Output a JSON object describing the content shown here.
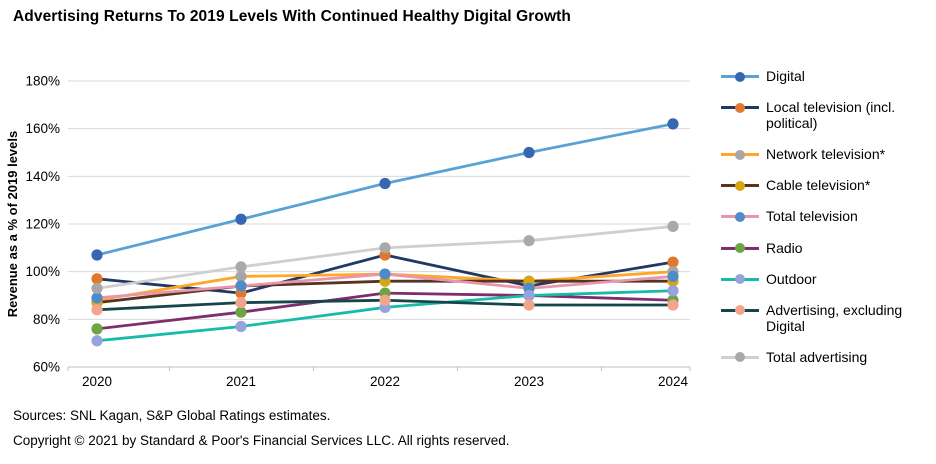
{
  "title": "Advertising Returns To 2019 Levels With Continued Healthy Digital Growth",
  "chart_data": {
    "type": "line",
    "x": [
      "2020",
      "2021",
      "2022",
      "2023",
      "2024"
    ],
    "xlabel": "",
    "ylabel": "Revenue as a % of 2019 levels",
    "ylim": [
      60,
      180
    ],
    "ytick_step": 20,
    "ytick_labels": [
      "60%",
      "80%",
      "100%",
      "120%",
      "140%",
      "160%",
      "180%"
    ],
    "grid": true,
    "legend_position": "right",
    "grid_color": "#d9d9d9",
    "axis_color": "#bfbfbf",
    "series": [
      {
        "name": "Digital",
        "values": [
          107,
          122,
          137,
          150,
          162
        ],
        "line_color": "#59a2d8",
        "marker_color": "#3767b1"
      },
      {
        "name": "Local television (incl. political)",
        "values": [
          97,
          91,
          107,
          94,
          104
        ],
        "line_color": "#1f3864",
        "marker_color": "#e0782f"
      },
      {
        "name": "Network television*",
        "values": [
          88,
          98,
          99,
          96,
          100
        ],
        "line_color": "#ffa726",
        "marker_color": "#a6a6a6"
      },
      {
        "name": "Cable television*",
        "values": [
          87,
          94,
          96,
          96,
          96
        ],
        "line_color": "#573320",
        "marker_color": "#d9a613"
      },
      {
        "name": "Total television",
        "values": [
          89,
          94,
          99,
          93,
          98
        ],
        "line_color": "#e896ae",
        "marker_color": "#4e8bc9"
      },
      {
        "name": "Radio",
        "values": [
          76,
          83,
          91,
          90,
          88
        ],
        "line_color": "#7e2d6f",
        "marker_color": "#6ca644"
      },
      {
        "name": "Outdoor",
        "values": [
          71,
          77,
          85,
          90,
          92
        ],
        "line_color": "#17bba9",
        "marker_color": "#97a4db"
      },
      {
        "name": "Advertising, excluding Digital",
        "values": [
          84,
          87,
          88,
          86,
          86
        ],
        "line_color": "#16454c",
        "marker_color": "#f2a58c"
      },
      {
        "name": "Total advertising",
        "values": [
          93,
          102,
          110,
          113,
          119
        ],
        "line_color": "#cfcfcf",
        "marker_color": "#a9a9a9"
      }
    ],
    "title": "Advertising Returns To 2019 Levels With Continued Healthy Digital Growth"
  },
  "footer": {
    "sources": "Sources: SNL Kagan, S&P Global Ratings estimates.",
    "copyright": "Copyright © 2021 by Standard & Poor's Financial Services LLC. All rights reserved."
  }
}
